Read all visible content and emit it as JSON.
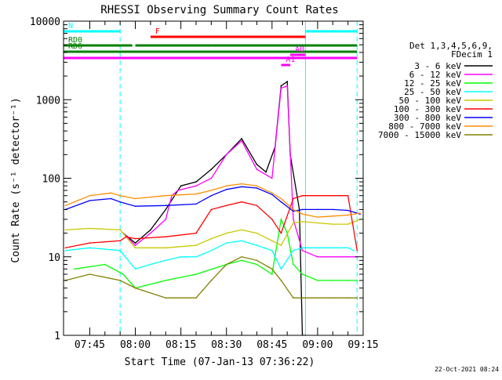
{
  "chart_data": {
    "type": "line",
    "title": "RHESSI Observing Summary Count Rates",
    "xlabel": "Start Time (07-Jan-13 07:36:22)",
    "ylabel": "Count Rate (s⁻¹ detector⁻¹)",
    "footer_date": "22-Oct-2021 08:24",
    "y_scale": "log",
    "ylim": [
      1,
      10000
    ],
    "xlim": [
      "07:36:22",
      "09:15:00"
    ],
    "y_ticks": [
      {
        "value": 1,
        "label": "1"
      },
      {
        "value": 10,
        "label": "10"
      },
      {
        "value": 100,
        "label": "100"
      },
      {
        "value": 1000,
        "label": "1000"
      },
      {
        "value": 10000,
        "label": "10000"
      }
    ],
    "x_ticks": [
      {
        "label": "07:45",
        "time": "07:45"
      },
      {
        "label": "08:00",
        "time": "08:00"
      },
      {
        "label": "08:15",
        "time": "08:15"
      },
      {
        "label": "08:30",
        "time": "08:30"
      },
      {
        "label": "08:45",
        "time": "08:45"
      },
      {
        "label": "09:00",
        "time": "09:00"
      },
      {
        "label": "09:15",
        "time": "09:15"
      }
    ],
    "legend_header": [
      "Det 1,3,4,5,6,9,",
      "FDecim 1"
    ],
    "legend_placement": "right",
    "series": [
      {
        "name": "3 - 6 keV",
        "color": "#000000",
        "x": [
          "07:56",
          "08:00",
          "08:05",
          "08:10",
          "08:15",
          "08:20",
          "08:25",
          "08:30",
          "08:35",
          "08:40",
          "08:43",
          "08:46",
          "08:48",
          "08:50",
          "08:51",
          "08:54",
          "08:55",
          "08:56"
        ],
        "y": [
          20,
          15,
          22,
          40,
          80,
          90,
          130,
          200,
          320,
          150,
          120,
          250,
          1500,
          1700,
          200,
          40,
          1,
          1
        ]
      },
      {
        "name": "6 - 12 keV",
        "color": "#ff00ff",
        "x": [
          "07:56",
          "08:00",
          "08:05",
          "08:10",
          "08:12",
          "08:14",
          "08:20",
          "08:25",
          "08:30",
          "08:35",
          "08:40",
          "08:45",
          "08:48",
          "08:50",
          "08:52",
          "08:55",
          "09:00",
          "09:05",
          "09:10",
          "09:12",
          "09:13"
        ],
        "y": [
          20,
          14,
          20,
          30,
          60,
          70,
          80,
          100,
          200,
          300,
          130,
          100,
          1400,
          1500,
          30,
          12,
          10,
          10,
          10,
          10,
          10
        ]
      },
      {
        "name": "12 - 25 keV",
        "color": "#00ff00",
        "x": [
          "07:40",
          "07:50",
          "07:56",
          "08:00",
          "08:10",
          "08:20",
          "08:30",
          "08:35",
          "08:40",
          "08:45",
          "08:48",
          "08:50",
          "08:52",
          "08:55",
          "09:00",
          "09:05",
          "09:10",
          "09:13"
        ],
        "y": [
          7,
          8,
          6,
          4,
          5,
          6,
          8,
          9,
          8,
          6,
          30,
          20,
          8,
          6,
          5,
          5,
          5,
          5
        ]
      },
      {
        "name": "25 - 50 keV",
        "color": "#00ffff",
        "x": [
          "07:37",
          "07:45",
          "07:55",
          "08:00",
          "08:05",
          "08:10",
          "08:15",
          "08:20",
          "08:25",
          "08:30",
          "08:35",
          "08:40",
          "08:45",
          "08:48",
          "08:52",
          "08:55",
          "09:00",
          "09:05",
          "09:10",
          "09:12"
        ],
        "y": [
          12,
          13,
          12,
          7,
          8,
          9,
          10,
          10,
          12,
          15,
          16,
          14,
          12,
          7,
          12,
          13,
          13,
          13,
          13,
          12
        ]
      },
      {
        "name": "50 - 100 keV",
        "color": "#c8c800",
        "x": [
          "07:37",
          "07:45",
          "07:55",
          "08:00",
          "08:10",
          "08:20",
          "08:25",
          "08:30",
          "08:35",
          "08:40",
          "08:45",
          "08:48",
          "08:52",
          "08:55",
          "09:00",
          "09:05",
          "09:10",
          "09:14"
        ],
        "y": [
          22,
          23,
          22,
          13,
          13,
          14,
          17,
          20,
          22,
          20,
          16,
          14,
          27,
          28,
          27,
          26,
          26,
          30
        ]
      },
      {
        "name": "100 - 300 keV",
        "color": "#ff0000",
        "x": [
          "07:37",
          "07:45",
          "07:55",
          "07:57",
          "08:00",
          "08:10",
          "08:20",
          "08:25",
          "08:30",
          "08:35",
          "08:40",
          "08:45",
          "08:48",
          "08:52",
          "08:55",
          "09:00",
          "09:05",
          "09:10",
          "09:13"
        ],
        "y": [
          13,
          15,
          16,
          18,
          17,
          18,
          20,
          40,
          45,
          50,
          45,
          30,
          20,
          55,
          60,
          60,
          60,
          60,
          12
        ]
      },
      {
        "name": "300 - 800 keV",
        "color": "#0000ff",
        "x": [
          "07:37",
          "07:45",
          "07:52",
          "07:55",
          "08:00",
          "08:10",
          "08:20",
          "08:25",
          "08:30",
          "08:35",
          "08:40",
          "08:45",
          "08:48",
          "08:52",
          "08:55",
          "09:00",
          "09:05",
          "09:10",
          "09:14"
        ],
        "y": [
          40,
          52,
          55,
          50,
          44,
          45,
          47,
          60,
          72,
          78,
          75,
          62,
          50,
          38,
          40,
          40,
          40,
          39,
          35
        ]
      },
      {
        "name": "800 - 7000 keV",
        "color": "#ff8c00",
        "x": [
          "07:37",
          "07:45",
          "07:52",
          "07:55",
          "08:00",
          "08:10",
          "08:20",
          "08:25",
          "08:30",
          "08:35",
          "08:40",
          "08:45",
          "08:48",
          "08:52",
          "08:55",
          "09:00",
          "09:05",
          "09:10",
          "09:14"
        ],
        "y": [
          45,
          60,
          65,
          60,
          55,
          60,
          63,
          70,
          80,
          85,
          80,
          65,
          55,
          40,
          35,
          32,
          33,
          34,
          36
        ]
      },
      {
        "name": "7000 - 15000 keV",
        "color": "#808000",
        "x": [
          "07:37",
          "07:45",
          "07:55",
          "08:00",
          "08:10",
          "08:20",
          "08:25",
          "08:30",
          "08:35",
          "08:40",
          "08:45",
          "08:48",
          "08:52",
          "08:55",
          "09:00",
          "09:05",
          "09:10",
          "09:13"
        ],
        "y": [
          5,
          6,
          5,
          4,
          3,
          3,
          5,
          8,
          10,
          9,
          7,
          5,
          3,
          3,
          3,
          3,
          3,
          3
        ]
      }
    ],
    "flag_bars": [
      {
        "label": "N",
        "color": "#00ffff",
        "segments": [
          [
            "07:36:22",
            "07:55"
          ],
          [
            "08:56",
            "09:13"
          ]
        ],
        "level": 1
      },
      {
        "label": "F",
        "color": "#ff0000",
        "segments": [
          [
            "08:05",
            "08:56"
          ]
        ],
        "level": 2
      },
      {
        "label": "RD0",
        "color": "#008000",
        "segments": [
          [
            "07:36:22",
            "07:59"
          ],
          [
            "08:00",
            "08:25"
          ],
          [
            "08:25",
            "08:52"
          ],
          [
            "08:52",
            "09:13"
          ]
        ],
        "level": 3
      },
      {
        "label": "RD6",
        "color": "#008000",
        "segments": [
          [
            "07:36:22",
            "09:13"
          ]
        ],
        "level": 4
      },
      {
        "label": "A1",
        "color": "#ff00ff",
        "segments": [
          [
            "08:48",
            "08:51"
          ]
        ],
        "level": 5
      },
      {
        "label": "A0",
        "color": "#ff00ff",
        "segments": [
          [
            "08:51",
            "08:56"
          ]
        ],
        "level": 6
      },
      {
        "label": "",
        "color": "#ff00ff",
        "segments": [
          [
            "07:36:22",
            "09:13"
          ]
        ],
        "level": 7
      }
    ],
    "vertical_markers": [
      {
        "time": "07:55",
        "color": "#00ffff",
        "style": "dashed"
      },
      {
        "time": "08:56",
        "color": "#00ffff",
        "style": "solid"
      },
      {
        "time": "09:13",
        "color": "#00ffff",
        "style": "dashed"
      }
    ]
  }
}
